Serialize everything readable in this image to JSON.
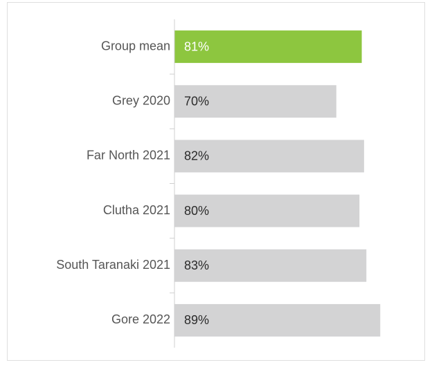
{
  "chart_data": {
    "type": "barh",
    "categories": [
      "Group mean",
      "Grey 2020",
      "Far North 2021",
      "Clutha 2021",
      "South Taranaki 2021",
      "Gore 2022"
    ],
    "values": [
      81,
      70,
      82,
      80,
      83,
      89
    ],
    "value_labels": [
      "81%",
      "70%",
      "82%",
      "80%",
      "83%",
      "89%"
    ],
    "colors": [
      "#8dc63f",
      "#d3d3d4",
      "#d3d3d4",
      "#d3d3d4",
      "#d3d3d4",
      "#d3d3d4"
    ],
    "label_colors": [
      "#ffffff",
      "#2b2b2b",
      "#2b2b2b",
      "#2b2b2b",
      "#2b2b2b",
      "#2b2b2b"
    ],
    "xlim": [
      0,
      100
    ]
  }
}
